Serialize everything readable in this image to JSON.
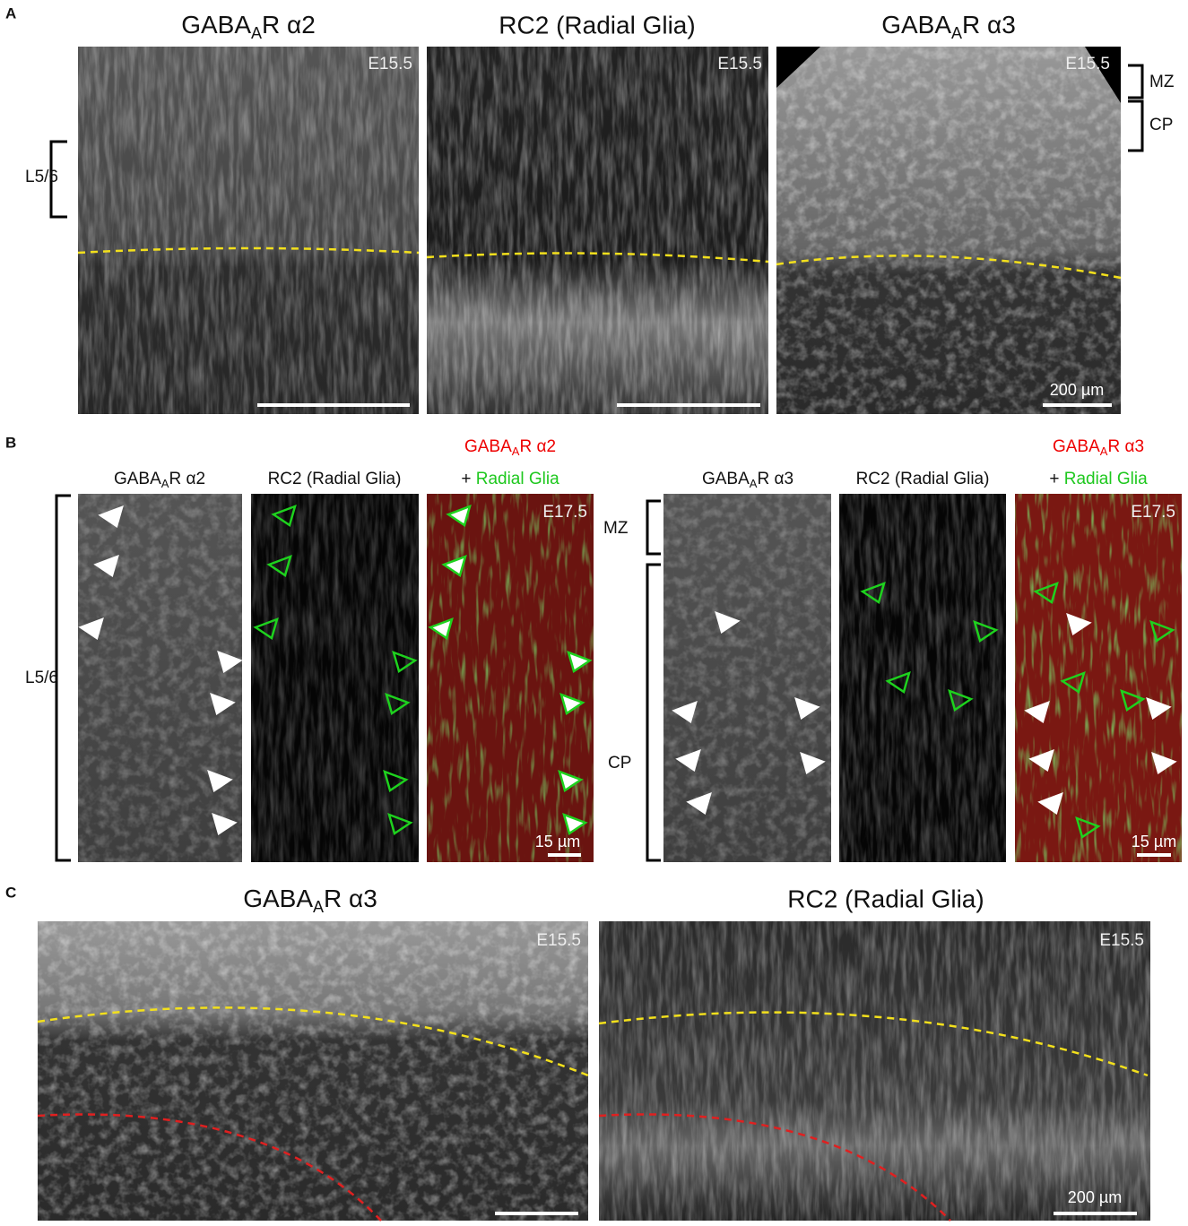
{
  "panel_a": {
    "label": "A",
    "images": [
      {
        "title": [
          "GABA",
          "A",
          "R α2"
        ],
        "stage": "E15.5"
      },
      {
        "title": "RC2 (Radial Glia)",
        "stage": "E15.5"
      },
      {
        "title": [
          "GABA",
          "A",
          "R α3"
        ],
        "stage": "E15.5",
        "scale_bar": "200 µm"
      }
    ],
    "left_bracket": "L5/6",
    "right_brackets": [
      "MZ",
      "CP"
    ]
  },
  "panel_b": {
    "label": "B",
    "left": {
      "titles": [
        [
          "GABA",
          "A",
          "R α2"
        ],
        "RC2 (Radial Glia)"
      ],
      "merge_title": {
        "line1": [
          "GABA",
          "A",
          "R α2"
        ],
        "line2": [
          "+",
          "Radial Glia"
        ]
      },
      "stage": "E17.5",
      "scale_bar": "15 µm",
      "bracket": "L5/6"
    },
    "right": {
      "titles": [
        [
          "GABA",
          "A",
          "R α3"
        ],
        "RC2 (Radial Glia)"
      ],
      "merge_title": {
        "line1": [
          "GABA",
          "A",
          "R α3"
        ],
        "line2": [
          "+",
          "Radial Glia"
        ]
      },
      "stage": "E17.5",
      "scale_bar": "15 µm",
      "brackets": [
        "MZ",
        "CP"
      ]
    }
  },
  "panel_c": {
    "label": "C",
    "images": [
      {
        "title": [
          "GABA",
          "A",
          "R α3"
        ],
        "stage": "E15.5"
      },
      {
        "title": "RC2 (Radial Glia)",
        "stage": "E15.5",
        "scale_bar": "200 µm"
      }
    ]
  }
}
